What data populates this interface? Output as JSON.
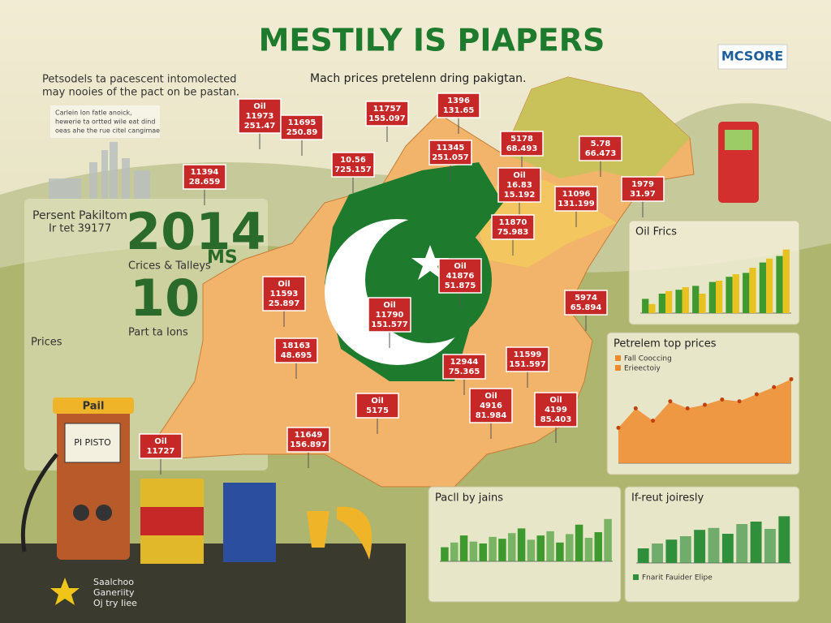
{
  "header": {
    "title": "MESTILY IS PIAPERS",
    "logo": "MCSORE",
    "intro": [
      "Petsodels ta pacescent intomolected",
      "may nooies of the pact on be pastan."
    ],
    "subtitle": "Mach prices pretelenn dring pakigtan.",
    "note": [
      "Carlein lon fatle anoick,",
      "hewerie ta ortted wile eat dind",
      "oeas ahe the rue citel cangimae"
    ]
  },
  "left_panel": {
    "heading": [
      "Persent Pakiltom",
      "Ir tet 39177"
    ],
    "big_number": "2014",
    "big_suffix": "MS",
    "caption": "Crices & Talleys",
    "second_number": "10",
    "second_caption": "Part ta Ions",
    "prices_heading": "Prices"
  },
  "map_tags": [
    {
      "lines": [
        "Oil",
        "11973",
        "251.47"
      ]
    },
    {
      "lines": [
        "11695",
        "250.89"
      ]
    },
    {
      "lines": [
        "11757",
        "155.097"
      ]
    },
    {
      "lines": [
        "1396",
        "131.65"
      ]
    },
    {
      "lines": [
        "11394",
        "28.659"
      ]
    },
    {
      "lines": [
        "10.56",
        "725.157"
      ]
    },
    {
      "lines": [
        "11345",
        "251.057"
      ]
    },
    {
      "lines": [
        "5178",
        "68.493"
      ]
    },
    {
      "lines": [
        "5.78",
        "66.473"
      ]
    },
    {
      "lines": [
        "Oil",
        "16.83",
        "15.192"
      ]
    },
    {
      "lines": [
        "11096",
        "131.199"
      ]
    },
    {
      "lines": [
        "1979",
        "31.97"
      ]
    },
    {
      "lines": [
        "11870",
        "75.983"
      ]
    },
    {
      "lines": [
        "Oil",
        "41876",
        "51.875"
      ]
    },
    {
      "lines": [
        "Oil",
        "11593",
        "25.897"
      ]
    },
    {
      "lines": [
        "Oil",
        "11790",
        "151.577"
      ]
    },
    {
      "lines": [
        "5974",
        "65.894"
      ]
    },
    {
      "lines": [
        "18163",
        "48.695"
      ]
    },
    {
      "lines": [
        "12944",
        "75.365"
      ]
    },
    {
      "lines": [
        "11599",
        "151.597"
      ]
    },
    {
      "lines": [
        "Oil",
        "4916",
        "81.984"
      ]
    },
    {
      "lines": [
        "Oil",
        "5175"
      ]
    },
    {
      "lines": [
        "Oil",
        "4199",
        "85.403"
      ]
    },
    {
      "lines": [
        "11649",
        "156.897"
      ]
    },
    {
      "lines": [
        "Oil",
        "11727"
      ]
    }
  ],
  "charts": [
    {
      "type": "bar",
      "title": "Oil Frics",
      "series": [
        {
          "color": "#3e9a2e",
          "values": [
            22,
            30,
            36,
            42,
            48,
            56,
            62,
            78,
            88
          ]
        },
        {
          "color": "#e8c21e",
          "values": [
            14,
            34,
            40,
            30,
            50,
            60,
            70,
            84,
            98
          ]
        }
      ]
    },
    {
      "type": "area",
      "title": "Petrelem top prices",
      "legend": [
        "Fall Cooccing",
        "Erieectoiy"
      ],
      "color": "#f0892c",
      "values": [
        40,
        62,
        48,
        70,
        62,
        66,
        72,
        70,
        78,
        86,
        95
      ]
    },
    {
      "type": "bar",
      "title": "Pacll by jains",
      "series": [
        {
          "color": "#3e9a2e",
          "values": [
            30,
            40,
            55,
            42,
            38,
            52,
            48,
            60,
            70,
            46,
            55,
            64,
            40,
            58,
            78,
            50,
            62,
            90
          ]
        }
      ]
    },
    {
      "type": "bar",
      "title": "If-reut joiresly",
      "legend": [
        "Fnarit Fauider Elipe"
      ],
      "series": [
        {
          "color": "#2f8f3a",
          "values": [
            30,
            40,
            48,
            55,
            68,
            72,
            60,
            80,
            85,
            70,
            96
          ]
        }
      ]
    }
  ],
  "pump": {
    "label": "Pail",
    "screen": "PI PISTO"
  },
  "badges": [
    "Saalchoo",
    "Ganeriity",
    "Oj try Iiee"
  ]
}
